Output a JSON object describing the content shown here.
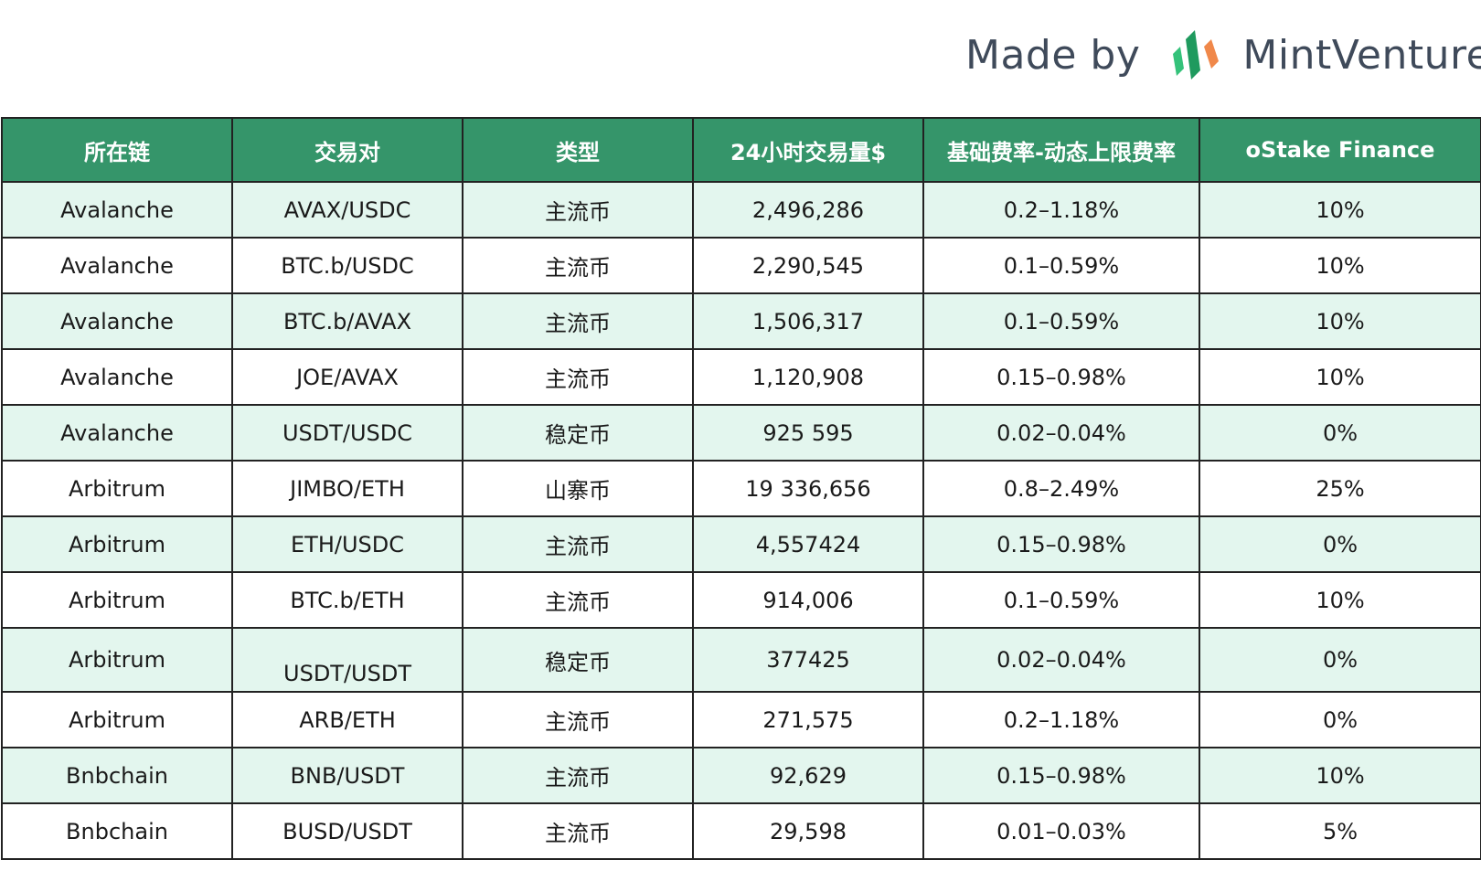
{
  "branding": {
    "made_by": "Made by",
    "brand_name": "MintVentures",
    "logo_icon": "mint-ventures-logo-icon",
    "colors": {
      "green_dark": "#1f9a5e",
      "green_light": "#34c27a",
      "orange": "#f0884a",
      "text": "#3f4a5a"
    }
  },
  "table": {
    "header_color": "#35956a",
    "stripe_color": "#e3f6ee",
    "headers": [
      "所在链",
      "交易对",
      "类型",
      "24小时交易量$",
      "基础费率-动态上限费率",
      "oStake Finance"
    ],
    "rows": [
      [
        "Avalanche",
        "AVAX/USDC",
        "主流币",
        "2,496,286",
        "0.2–1.18%",
        "10%"
      ],
      [
        "Avalanche",
        "BTC.b/USDC",
        "主流币",
        "2,290,545",
        "0.1–0.59%",
        "10%"
      ],
      [
        "Avalanche",
        "BTC.b/AVAX",
        "主流币",
        "1,506,317",
        "0.1–0.59%",
        "10%"
      ],
      [
        "Avalanche",
        "JOE/AVAX",
        "主流币",
        "1,120,908",
        "0.15–0.98%",
        "10%"
      ],
      [
        "Avalanche",
        "USDT/USDC",
        "稳定币",
        "925 595",
        "0.02–0.04%",
        "0%"
      ],
      [
        "Arbitrum",
        "JIMBO/ETH",
        "山寨币",
        "19 336,656",
        "0.8–2.49%",
        "25%"
      ],
      [
        "Arbitrum",
        "ETH/USDC",
        "主流币",
        "4,557424",
        "0.15–0.98%",
        "0%"
      ],
      [
        "Arbitrum",
        "BTC.b/ETH",
        "主流币",
        "914,006",
        "0.1–0.59%",
        "10%"
      ],
      [
        "Arbitrum",
        "USDT/USDT",
        "稳定币",
        "377425",
        "0.02–0.04%",
        "0%"
      ],
      [
        "Arbitrum",
        "ARB/ETH",
        "主流币",
        "271,575",
        "0.2–1.18%",
        "0%"
      ],
      [
        "Bnbchain",
        "BNB/USDT",
        "主流币",
        "92,629",
        "0.15–0.98%",
        "10%"
      ],
      [
        "Bnbchain",
        "BUSD/USDT",
        "主流币",
        "29,598",
        "0.01–0.03%",
        "5%"
      ]
    ]
  }
}
